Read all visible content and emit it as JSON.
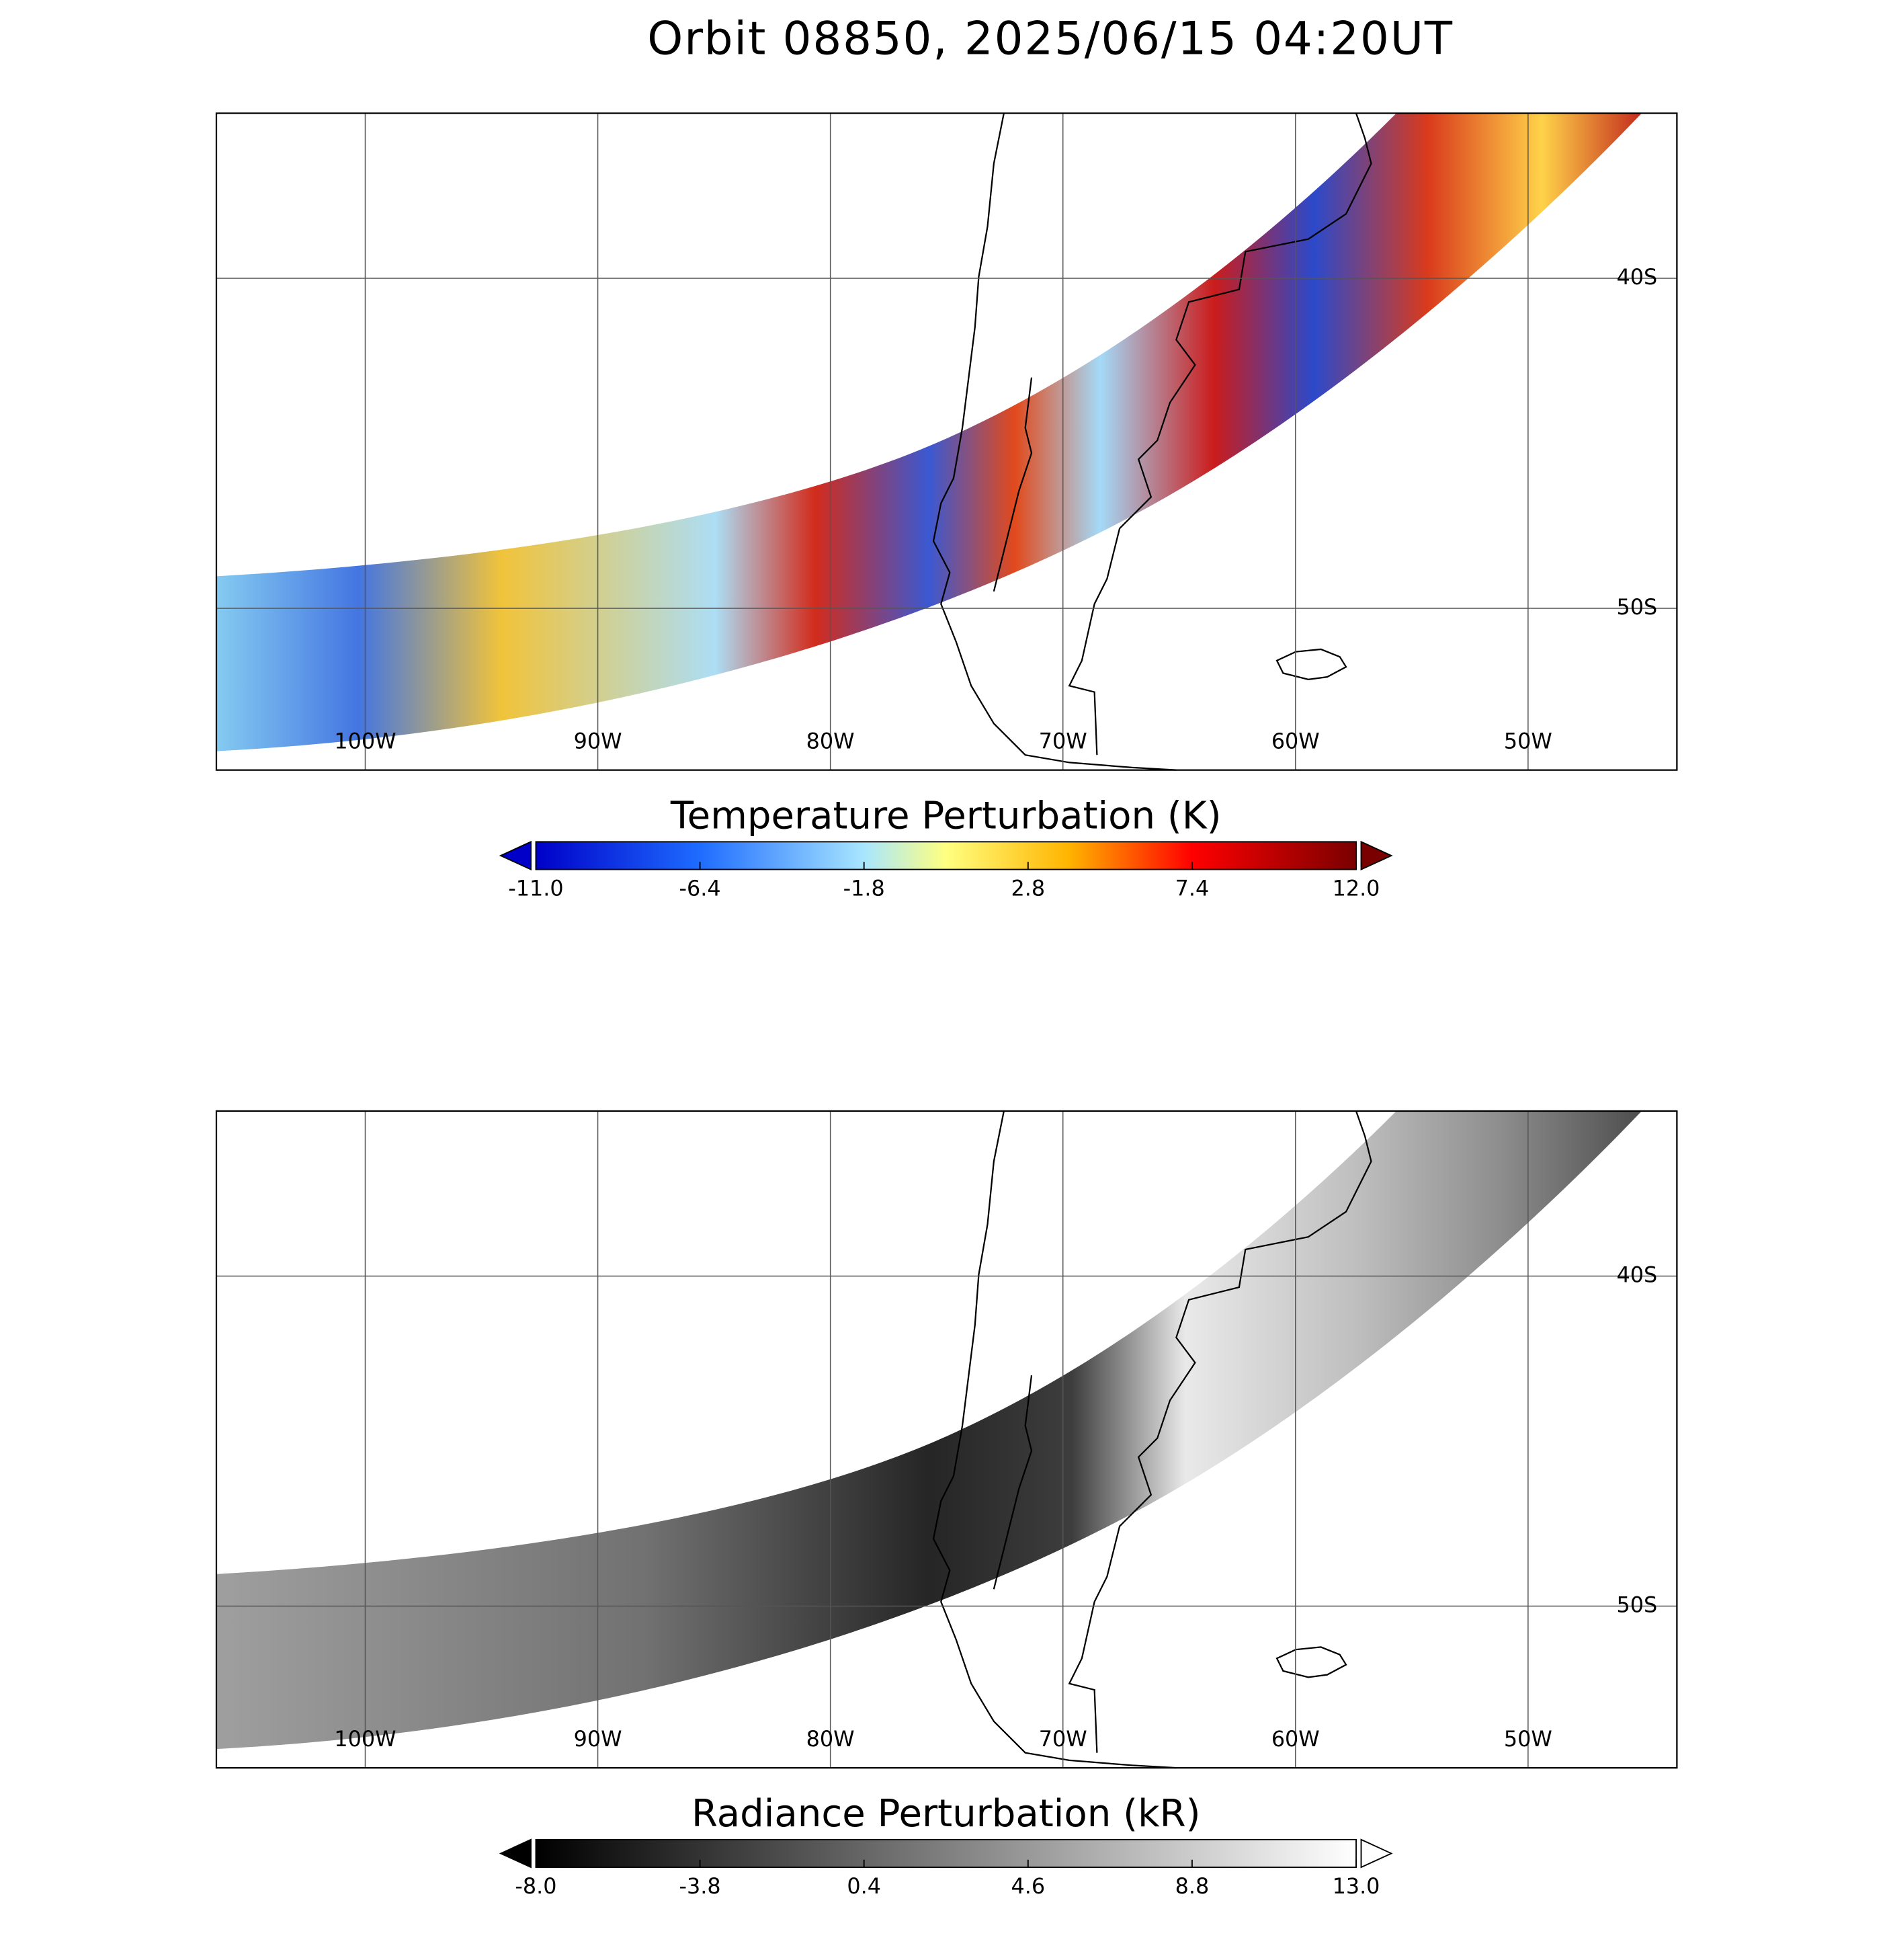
{
  "title": "Orbit 08850, 2025/06/15 04:20UT",
  "lon_range": [
    -106.4,
    -43.6
  ],
  "lat_range": [
    -35,
    -54.9
  ],
  "lon_ticks": [
    {
      "value": -100,
      "label": "100W"
    },
    {
      "value": -90,
      "label": "90W"
    },
    {
      "value": -80,
      "label": "80W"
    },
    {
      "value": -70,
      "label": "70W"
    },
    {
      "value": -60,
      "label": "60W"
    },
    {
      "value": -50,
      "label": "50W"
    }
  ],
  "lat_ticks": [
    {
      "value": -40,
      "label": "40S"
    },
    {
      "value": -50,
      "label": "50S"
    }
  ],
  "panels": [
    {
      "colorbar": {
        "label": "Temperature Perturbation (K)",
        "range": [
          -11,
          12
        ],
        "ticks": [
          {
            "value": -11,
            "label": "-11.0"
          },
          -6.4,
          -1.8,
          2.8,
          7.4,
          {
            "value": 12,
            "label": "12.0"
          }
        ]
      }
    },
    {
      "colorbar": {
        "label": "Radiance Perturbation (kR)",
        "range": [
          -8,
          13
        ],
        "ticks": [
          {
            "value": -8,
            "label": "-8.0"
          },
          -3.8,
          0.4,
          4.6,
          8.8,
          {
            "value": 13,
            "label": "13.0"
          }
        ]
      }
    }
  ]
}
